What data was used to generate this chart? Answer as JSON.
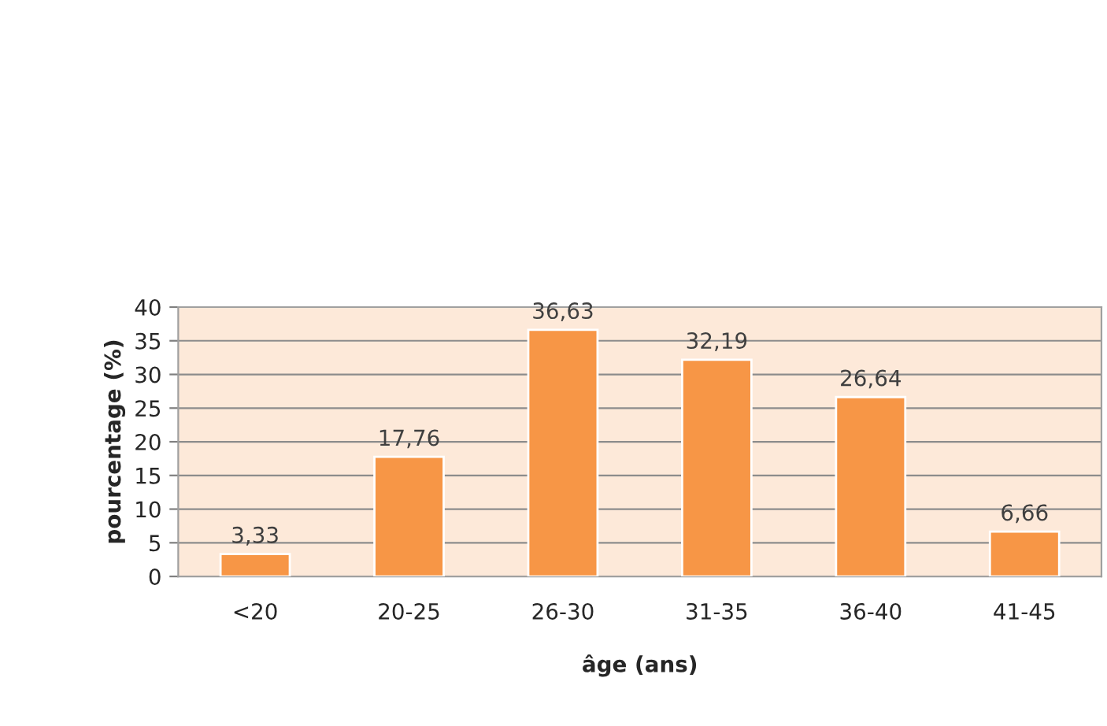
{
  "chart_data": {
    "type": "bar",
    "xlabel": "âge (ans)",
    "ylabel": "pourcentage (%)",
    "categories": [
      "<20",
      "20-25",
      "26-30",
      "31-35",
      "36-40",
      "41-45"
    ],
    "values": [
      3.33,
      17.76,
      36.63,
      32.19,
      26.64,
      6.66
    ],
    "value_labels": [
      "3,33",
      "17,76",
      "36,63",
      "32,19",
      "26,64",
      "6,66"
    ],
    "color": "#f79646",
    "ylim": [
      0,
      40
    ],
    "yticks": [
      0,
      5,
      10,
      15,
      20,
      25,
      30,
      35,
      40
    ],
    "grid": "y",
    "legend": false
  }
}
